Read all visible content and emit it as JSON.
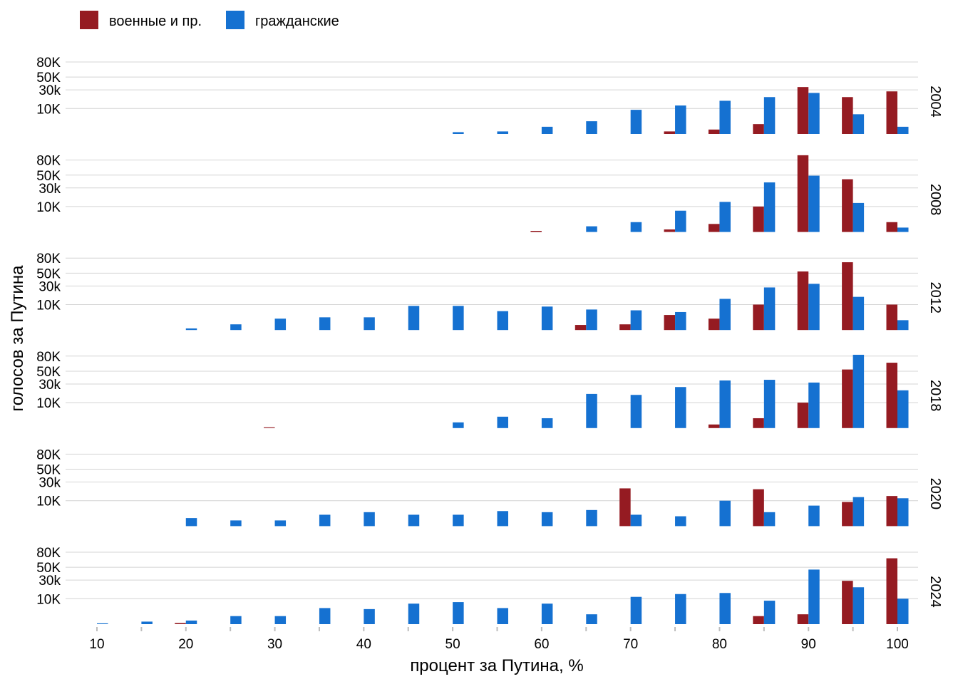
{
  "chart_data": {
    "type": "bar",
    "xlabel": "процент за Путина, %",
    "ylabel": "голосов за Путина",
    "x_ticks": [
      10,
      20,
      30,
      40,
      50,
      60,
      70,
      80,
      90,
      100
    ],
    "x_bins": [
      10,
      15,
      20,
      25,
      30,
      35,
      40,
      45,
      50,
      55,
      60,
      65,
      70,
      75,
      80,
      85,
      90,
      95,
      100
    ],
    "y_scale": "sqrt",
    "ylim": [
      0,
      80000
    ],
    "y_ticks": [
      10000,
      30000,
      50000,
      80000
    ],
    "y_tick_labels": [
      "10K",
      "30k",
      "50K",
      "80K"
    ],
    "legend": {
      "position": "top-left"
    },
    "grid": true,
    "series": [
      {
        "name": "военные и пр.",
        "color": "#951b22"
      },
      {
        "name": "гражданские",
        "color": "#1571d1"
      }
    ],
    "panels": [
      {
        "label": "2004",
        "military": [
          0,
          0,
          0,
          0,
          0,
          0,
          0,
          0,
          0,
          0,
          0,
          0,
          0,
          100,
          300,
          1500,
          34000,
          21000,
          28000
        ],
        "civilian": [
          0,
          0,
          0,
          0,
          0,
          0,
          0,
          0,
          50,
          100,
          800,
          2500,
          9000,
          12500,
          17000,
          21000,
          26000,
          6000,
          800
        ]
      },
      {
        "label": "2008",
        "military": [
          0,
          0,
          0,
          0,
          0,
          0,
          0,
          0,
          0,
          0,
          20,
          0,
          0,
          100,
          1000,
          10000,
          91000,
          43000,
          1500
        ],
        "civilian": [
          0,
          0,
          0,
          0,
          0,
          0,
          0,
          0,
          0,
          0,
          0,
          500,
          1500,
          7000,
          14000,
          38000,
          49000,
          13000,
          300
        ]
      },
      {
        "label": "2012",
        "military": [
          0,
          0,
          0,
          0,
          0,
          0,
          0,
          0,
          0,
          0,
          0,
          400,
          500,
          3500,
          2000,
          10000,
          53000,
          71000,
          10000
        ],
        "civilian": [
          0,
          0,
          40,
          500,
          2000,
          2500,
          2500,
          9000,
          9000,
          5500,
          8500,
          6500,
          6000,
          5000,
          15000,
          28000,
          33000,
          17000,
          1500
        ]
      },
      {
        "label": "2018",
        "military": [
          0,
          0,
          0,
          0,
          10,
          0,
          0,
          0,
          0,
          0,
          0,
          0,
          0,
          0,
          200,
          1500,
          10000,
          53000,
          66000
        ],
        "civilian": [
          0,
          0,
          0,
          0,
          0,
          0,
          0,
          0,
          500,
          2000,
          1500,
          18000,
          17000,
          26000,
          35000,
          36000,
          32000,
          83000,
          22000
        ]
      },
      {
        "label": "2020",
        "military": [
          0,
          0,
          0,
          0,
          0,
          0,
          0,
          0,
          0,
          0,
          0,
          0,
          22000,
          0,
          0,
          21000,
          0,
          9000,
          14000
        ],
        "civilian": [
          0,
          0,
          1000,
          500,
          500,
          2000,
          3000,
          2000,
          2000,
          3500,
          3000,
          4000,
          2000,
          1500,
          10000,
          3000,
          6500,
          13000,
          12000
        ]
      },
      {
        "label": "2024",
        "military": [
          0,
          0,
          20,
          0,
          0,
          0,
          0,
          0,
          0,
          0,
          0,
          0,
          0,
          0,
          0,
          1000,
          1500,
          29000,
          67000
        ],
        "civilian": [
          10,
          100,
          200,
          1000,
          1000,
          4000,
          3500,
          6500,
          7500,
          4000,
          6500,
          1500,
          11500,
          14000,
          15000,
          8500,
          46000,
          21000,
          10000
        ]
      }
    ]
  }
}
